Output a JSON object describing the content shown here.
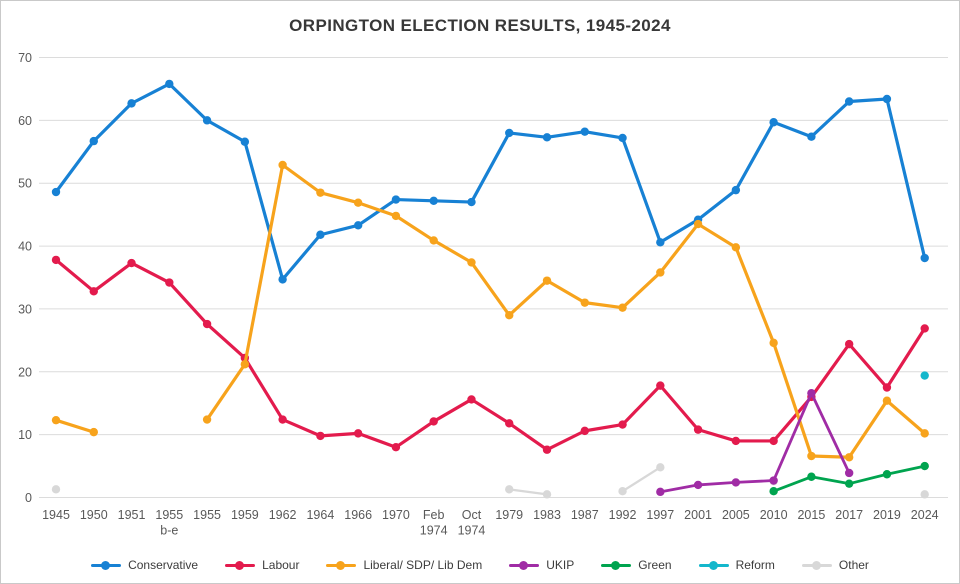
{
  "chart_data": {
    "type": "line",
    "title": "ORPINGTON ELECTION RESULTS, 1945-2024",
    "xlabel": "",
    "ylabel": "",
    "ylim": [
      0,
      70
    ],
    "yticks": [
      0,
      10,
      20,
      30,
      40,
      50,
      60,
      70
    ],
    "grid": "horizontal",
    "legend_position": "bottom",
    "categories": [
      "1945",
      "1950",
      "1951",
      "1955\nb-e",
      "1955",
      "1959",
      "1962",
      "1964",
      "1966",
      "1970",
      "Feb\n1974",
      "Oct\n1974",
      "1979",
      "1983",
      "1987",
      "1992",
      "1997",
      "2001",
      "2005",
      "2010",
      "2015",
      "2017",
      "2019",
      "2024"
    ],
    "series": [
      {
        "name": "Conservative",
        "color": "#1781d4",
        "values": [
          48.6,
          56.7,
          62.7,
          65.8,
          60.0,
          56.6,
          34.7,
          41.8,
          43.3,
          47.4,
          47.2,
          47.0,
          58.0,
          57.3,
          58.2,
          57.2,
          40.6,
          44.2,
          48.9,
          59.7,
          57.4,
          63.0,
          63.4,
          38.1
        ]
      },
      {
        "name": "Labour",
        "color": "#e31b4d",
        "values": [
          37.8,
          32.8,
          37.3,
          34.2,
          27.6,
          22.2,
          12.4,
          9.8,
          10.2,
          8.0,
          12.1,
          15.6,
          11.8,
          7.6,
          10.6,
          11.6,
          17.8,
          10.8,
          9.0,
          9.0,
          16.0,
          24.4,
          17.5,
          26.9
        ]
      },
      {
        "name": "Liberal/ SDP/ Lib Dem",
        "color": "#f7a31c",
        "values": [
          12.3,
          10.4,
          null,
          null,
          12.4,
          21.2,
          52.9,
          48.5,
          46.9,
          44.8,
          40.9,
          37.4,
          29.0,
          34.5,
          31.0,
          30.2,
          35.8,
          43.5,
          39.8,
          24.6,
          6.6,
          6.4,
          15.4,
          10.2
        ]
      },
      {
        "name": "UKIP",
        "color": "#a02ca5",
        "values": [
          null,
          null,
          null,
          null,
          null,
          null,
          null,
          null,
          null,
          null,
          null,
          null,
          null,
          null,
          null,
          null,
          0.9,
          2.0,
          2.4,
          2.7,
          16.6,
          3.9,
          null,
          null
        ]
      },
      {
        "name": "Green",
        "color": "#00a44f",
        "values": [
          null,
          null,
          null,
          null,
          null,
          null,
          null,
          null,
          null,
          null,
          null,
          null,
          null,
          null,
          null,
          null,
          null,
          null,
          null,
          1.0,
          3.3,
          2.2,
          3.7,
          5.0
        ]
      },
      {
        "name": "Reform",
        "color": "#14b7cc",
        "values": [
          null,
          null,
          null,
          null,
          null,
          null,
          null,
          null,
          null,
          null,
          null,
          null,
          null,
          null,
          null,
          null,
          null,
          null,
          null,
          null,
          null,
          null,
          null,
          19.4
        ]
      },
      {
        "name": "Other",
        "color": "#d8d8d8",
        "values": [
          1.3,
          null,
          null,
          null,
          null,
          null,
          null,
          null,
          null,
          null,
          null,
          null,
          1.3,
          0.5,
          null,
          1.0,
          4.8,
          null,
          null,
          2.6,
          null,
          null,
          null,
          0.5
        ]
      }
    ],
    "colors": {
      "gridline": "#dcdcdc",
      "tick_label": "#595959",
      "title": "#383838",
      "frame_border": "#c9c9c9"
    }
  }
}
